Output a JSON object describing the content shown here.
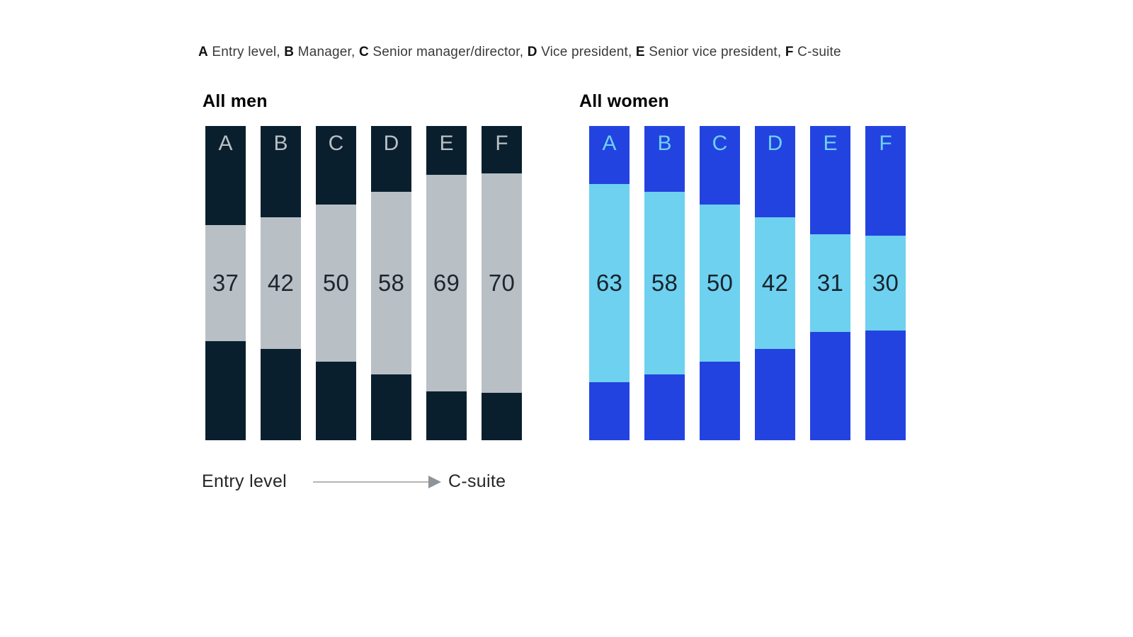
{
  "legend": {
    "separator": ", ",
    "items": [
      {
        "key": "A",
        "label": "Entry level"
      },
      {
        "key": "B",
        "label": "Manager"
      },
      {
        "key": "C",
        "label": "Senior manager/director"
      },
      {
        "key": "D",
        "label": "Vice president"
      },
      {
        "key": "E",
        "label": "Senior vice president"
      },
      {
        "key": "F",
        "label": "C-suite"
      }
    ]
  },
  "axis": {
    "start_label": "Entry level",
    "end_label": "C-suite"
  },
  "chart_data": [
    {
      "type": "bar",
      "variant": "100% column with value band centered vertically; top and bottom filler segments each (100-value)/2",
      "title": "All men",
      "categories": [
        "A",
        "B",
        "C",
        "D",
        "E",
        "F"
      ],
      "values": [
        37,
        42,
        50,
        58,
        69,
        70
      ],
      "ylim": [
        0,
        100
      ],
      "colors": {
        "outer": "#0a1f2e",
        "band": "#b9c0c5",
        "letter": "#b9c0c5",
        "value_text": "#1d262e"
      }
    },
    {
      "type": "bar",
      "variant": "100% column with value band centered vertically; top and bottom filler segments each (100-value)/2",
      "title": "All women",
      "categories": [
        "A",
        "B",
        "C",
        "D",
        "E",
        "F"
      ],
      "values": [
        63,
        58,
        50,
        42,
        31,
        30
      ],
      "ylim": [
        0,
        100
      ],
      "colors": {
        "outer": "#2343e1",
        "band": "#6ed1ef",
        "letter": "#6ed1ef",
        "value_text": "#17222c"
      }
    }
  ]
}
